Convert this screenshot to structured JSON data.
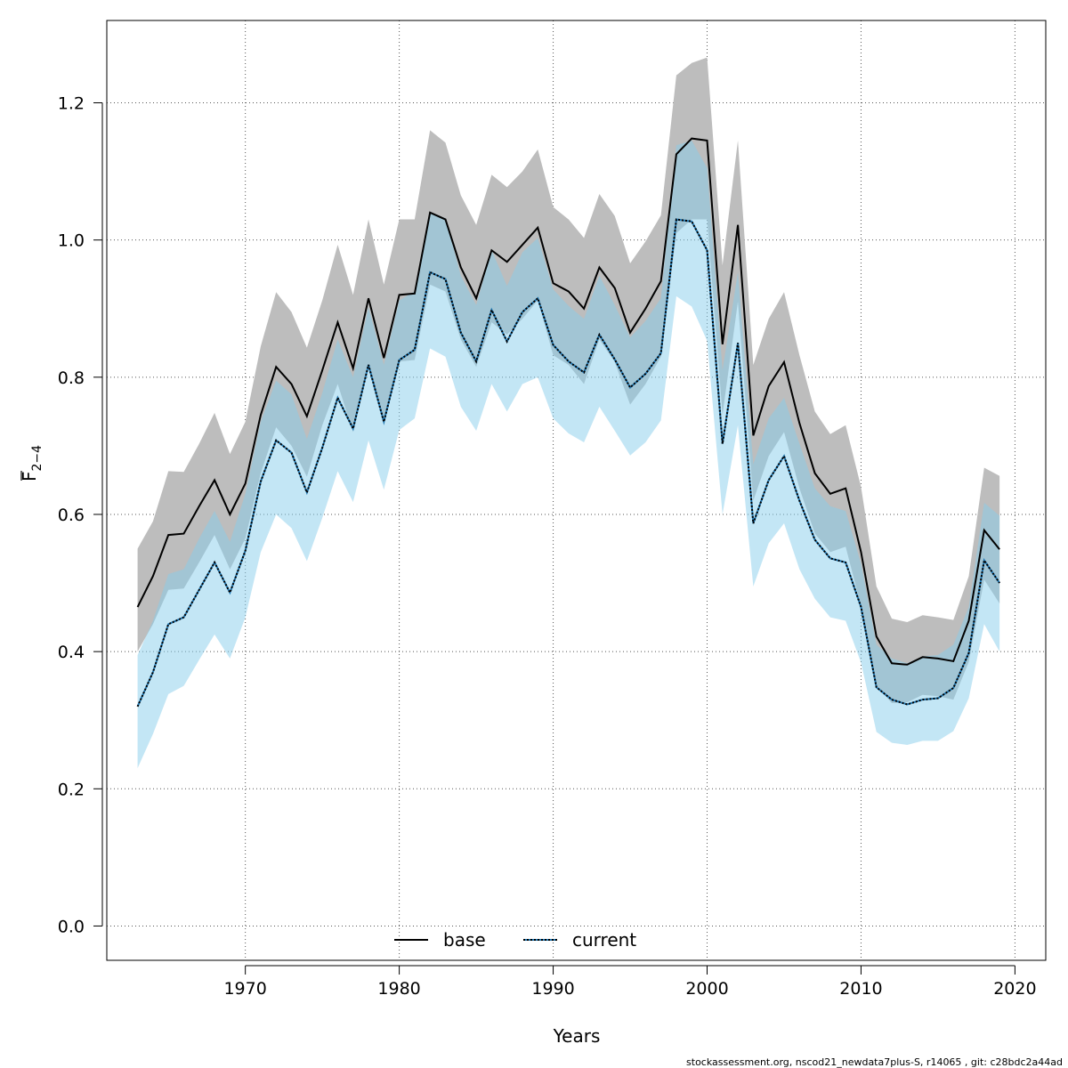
{
  "chart_data": {
    "type": "area",
    "xlabel": "Years",
    "ylabel_main": "F",
    "ylabel_sub": "2−4",
    "xlim": [
      1961,
      2022
    ],
    "ylim": [
      -0.05,
      1.32
    ],
    "x_ticks": [
      1970,
      1980,
      1990,
      2000,
      2010,
      2020
    ],
    "y_ticks": [
      0.0,
      0.2,
      0.4,
      0.6,
      0.8,
      1.0,
      1.2
    ],
    "y_tick_labels": [
      "0.0",
      "0.2",
      "0.4",
      "0.6",
      "0.8",
      "1.0",
      "1.2"
    ],
    "grid": true,
    "legend_position": "bottom-center",
    "x": [
      1963,
      1964,
      1965,
      1966,
      1967,
      1968,
      1969,
      1970,
      1971,
      1972,
      1973,
      1974,
      1975,
      1976,
      1977,
      1978,
      1979,
      1980,
      1981,
      1982,
      1983,
      1984,
      1985,
      1986,
      1987,
      1988,
      1989,
      1990,
      1991,
      1992,
      1993,
      1994,
      1995,
      1996,
      1997,
      1998,
      1999,
      2000,
      2001,
      2002,
      2003,
      2004,
      2005,
      2006,
      2007,
      2008,
      2009,
      2010,
      2011,
      2012,
      2013,
      2014,
      2015,
      2016,
      2017,
      2018,
      2019
    ],
    "series": [
      {
        "name": "base",
        "color": "#000000",
        "band_color": "#bdbdbd",
        "line_style": "solid",
        "values": [
          0.465,
          0.51,
          0.57,
          0.572,
          0.612,
          0.65,
          0.6,
          0.645,
          0.745,
          0.815,
          0.79,
          0.743,
          0.81,
          0.88,
          0.813,
          0.915,
          0.828,
          0.92,
          0.922,
          1.04,
          1.03,
          0.96,
          0.915,
          0.985,
          0.968,
          0.993,
          1.018,
          0.937,
          0.925,
          0.9,
          0.96,
          0.93,
          0.865,
          0.9,
          0.94,
          1.125,
          1.148,
          1.145,
          0.848,
          1.022,
          0.715,
          0.787,
          0.822,
          0.733,
          0.66,
          0.63,
          0.638,
          0.545,
          0.422,
          0.383,
          0.381,
          0.392,
          0.39,
          0.386,
          0.445,
          0.577,
          0.549
        ],
        "lower": [
          0.4,
          0.44,
          0.49,
          0.492,
          0.53,
          0.57,
          0.52,
          0.565,
          0.66,
          0.727,
          0.7,
          0.655,
          0.73,
          0.79,
          0.72,
          0.82,
          0.732,
          0.823,
          0.825,
          0.935,
          0.925,
          0.855,
          0.815,
          0.88,
          0.862,
          0.885,
          0.912,
          0.832,
          0.818,
          0.79,
          0.855,
          0.822,
          0.76,
          0.79,
          0.83,
          1.01,
          1.03,
          1.03,
          0.745,
          0.91,
          0.62,
          0.685,
          0.72,
          0.638,
          0.572,
          0.545,
          0.553,
          0.466,
          0.35,
          0.325,
          0.326,
          0.337,
          0.335,
          0.33,
          0.385,
          0.505,
          0.47
        ],
        "upper": [
          0.55,
          0.59,
          0.663,
          0.662,
          0.703,
          0.748,
          0.688,
          0.735,
          0.845,
          0.924,
          0.895,
          0.843,
          0.912,
          0.993,
          0.92,
          1.03,
          0.935,
          1.03,
          1.03,
          1.16,
          1.142,
          1.065,
          1.022,
          1.095,
          1.077,
          1.1,
          1.132,
          1.048,
          1.03,
          1.003,
          1.067,
          1.035,
          0.966,
          0.998,
          1.036,
          1.24,
          1.258,
          1.266,
          0.963,
          1.145,
          0.818,
          0.885,
          0.924,
          0.832,
          0.75,
          0.717,
          0.73,
          0.64,
          0.495,
          0.448,
          0.443,
          0.453,
          0.45,
          0.446,
          0.51,
          0.668,
          0.656
        ]
      },
      {
        "name": "current",
        "color": "#000000",
        "band_color": "#87ceeb",
        "line_style": "dotted",
        "values": [
          0.32,
          0.37,
          0.44,
          0.45,
          0.49,
          0.53,
          0.486,
          0.547,
          0.648,
          0.708,
          0.69,
          0.632,
          0.697,
          0.77,
          0.725,
          0.818,
          0.735,
          0.825,
          0.84,
          0.953,
          0.943,
          0.865,
          0.823,
          0.898,
          0.852,
          0.895,
          0.915,
          0.847,
          0.823,
          0.807,
          0.862,
          0.826,
          0.785,
          0.805,
          0.835,
          1.03,
          1.027,
          0.985,
          0.703,
          0.85,
          0.587,
          0.65,
          0.685,
          0.62,
          0.563,
          0.536,
          0.53,
          0.465,
          0.348,
          0.33,
          0.323,
          0.33,
          0.332,
          0.347,
          0.398,
          0.533,
          0.5
        ],
        "lower": [
          0.23,
          0.28,
          0.338,
          0.35,
          0.388,
          0.425,
          0.39,
          0.45,
          0.545,
          0.6,
          0.58,
          0.532,
          0.595,
          0.663,
          0.618,
          0.708,
          0.636,
          0.723,
          0.74,
          0.842,
          0.83,
          0.757,
          0.722,
          0.79,
          0.75,
          0.79,
          0.8,
          0.74,
          0.718,
          0.705,
          0.757,
          0.722,
          0.686,
          0.705,
          0.737,
          0.918,
          0.903,
          0.853,
          0.6,
          0.73,
          0.495,
          0.558,
          0.587,
          0.52,
          0.477,
          0.45,
          0.445,
          0.384,
          0.283,
          0.267,
          0.264,
          0.27,
          0.27,
          0.284,
          0.332,
          0.44,
          0.4
        ],
        "upper": [
          0.395,
          0.445,
          0.513,
          0.52,
          0.565,
          0.605,
          0.56,
          0.63,
          0.735,
          0.795,
          0.775,
          0.71,
          0.777,
          0.855,
          0.8,
          0.902,
          0.818,
          0.912,
          0.925,
          1.04,
          1.032,
          0.948,
          0.905,
          0.985,
          0.933,
          0.982,
          1.003,
          0.928,
          0.904,
          0.885,
          0.948,
          0.905,
          0.858,
          0.882,
          0.915,
          1.138,
          1.145,
          1.105,
          0.81,
          0.953,
          0.673,
          0.74,
          0.77,
          0.703,
          0.638,
          0.612,
          0.605,
          0.528,
          0.41,
          0.39,
          0.383,
          0.393,
          0.395,
          0.41,
          0.465,
          0.617,
          0.598
        ]
      }
    ]
  },
  "footer_text": "stockassessment.org, nscod21_newdata7plus-S, r14065 , git: c28bdc2a44ad"
}
